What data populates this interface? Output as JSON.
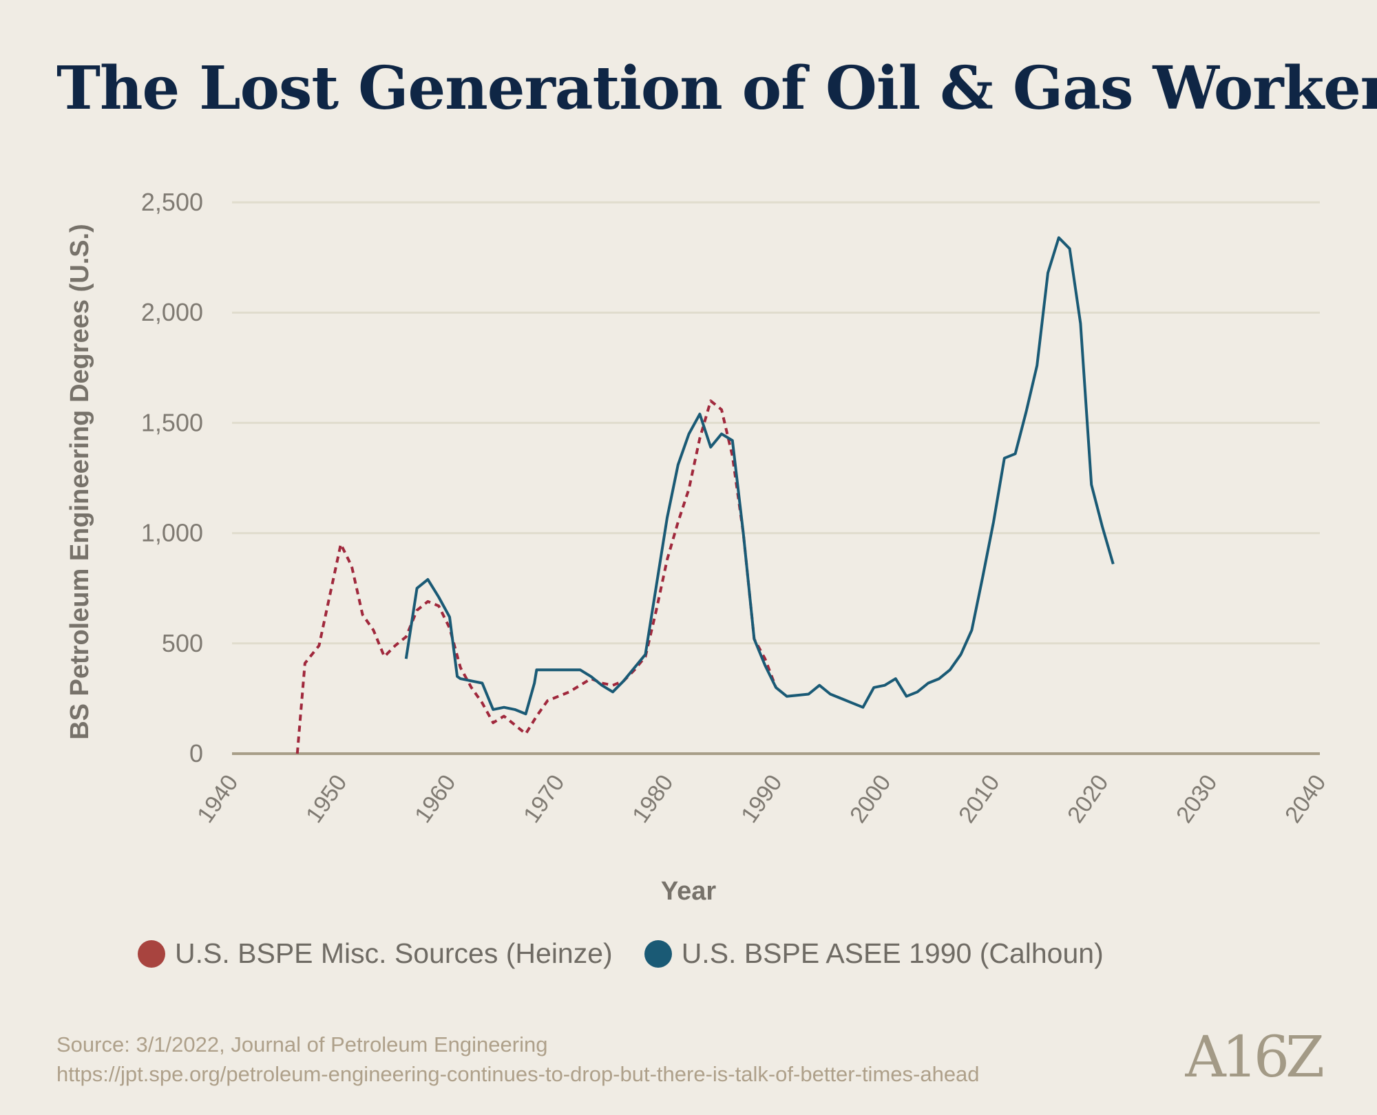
{
  "title": "The Lost Generation of Oil & Gas Workers",
  "chart_data": {
    "type": "line",
    "xlabel": "Year",
    "ylabel": "BS Petroleum Engineering Degrees (U.S.)",
    "xlim": [
      1940,
      2040
    ],
    "ylim": [
      0,
      2500
    ],
    "xticks": [
      1940,
      1950,
      1960,
      1970,
      1980,
      1990,
      2000,
      2010,
      2020,
      2030,
      2040
    ],
    "yticks": [
      0,
      500,
      1000,
      1500,
      2000,
      2500
    ],
    "ytick_labels": [
      "0",
      "500",
      "1,000",
      "1,500",
      "2,000",
      "2,500"
    ],
    "grid": true,
    "legend_position": "bottom",
    "series": [
      {
        "name": "U.S. BSPE Misc. Sources (Heinze)",
        "color": "#a0283c",
        "style": "dotted",
        "x": [
          1946,
          1946.7,
          1948,
          1950,
          1951,
          1952,
          1953,
          1954,
          1955,
          1956,
          1957,
          1958,
          1959,
          1960,
          1961,
          1962,
          1963,
          1964,
          1965,
          1966,
          1967,
          1968,
          1969,
          1970,
          1971,
          1972,
          1973,
          1974,
          1975,
          1976,
          1977,
          1978,
          1979,
          1980,
          1981,
          1982,
          1983,
          1984,
          1985,
          1986,
          1987,
          1988,
          1989,
          1990
        ],
        "y": [
          0,
          410,
          490,
          950,
          850,
          630,
          560,
          440,
          490,
          530,
          650,
          690,
          670,
          570,
          390,
          300,
          230,
          140,
          170,
          130,
          90,
          170,
          240,
          260,
          280,
          310,
          340,
          320,
          310,
          330,
          380,
          440,
          650,
          880,
          1050,
          1200,
          1430,
          1600,
          1560,
          1350,
          1000,
          520,
          430,
          300
        ],
        "legend_color": "#a8443f"
      },
      {
        "name": "U.S. BSPE ASEE 1990 (Calhoun)",
        "color": "#1a5a75",
        "style": "solid",
        "x": [
          1956,
          1957,
          1958,
          1959,
          1960,
          1960.7,
          1961,
          1962,
          1963,
          1964,
          1965,
          1966,
          1967,
          1967.8,
          1968,
          1969,
          1970,
          1971,
          1972,
          1973,
          1974,
          1975,
          1976,
          1977,
          1978,
          1979,
          1980,
          1981,
          1982,
          1983,
          1984,
          1985,
          1986,
          1987,
          1988,
          1989,
          1990,
          1991,
          1992,
          1993,
          1994,
          1995,
          1996,
          1997,
          1998,
          1999,
          2000,
          2001,
          2002,
          2003,
          2004,
          2005,
          2006,
          2007,
          2008,
          2009,
          2010,
          2011,
          2012,
          2013,
          2014,
          2015,
          2016,
          2017,
          2018,
          2019,
          2020,
          2021
        ],
        "y": [
          430,
          750,
          790,
          710,
          620,
          350,
          340,
          330,
          320,
          200,
          210,
          200,
          180,
          320,
          380,
          380,
          380,
          380,
          380,
          350,
          310,
          280,
          330,
          390,
          450,
          760,
          1070,
          1310,
          1450,
          1540,
          1390,
          1450,
          1420,
          1000,
          520,
          400,
          300,
          260,
          265,
          270,
          310,
          270,
          250,
          230,
          210,
          300,
          310,
          340,
          260,
          280,
          320,
          340,
          380,
          450,
          560,
          800,
          1050,
          1340,
          1360,
          1550,
          1760,
          2180,
          2340,
          2290,
          1950,
          1220,
          1030,
          860
        ],
        "legend_color": "#1a5a75"
      }
    ]
  },
  "source": {
    "line1": "Source: 3/1/2022, Journal of Petroleum Engineering",
    "line2": "https://jpt.spe.org/petroleum-engineering-continues-to-drop-but-there-is-talk-of-better-times-ahead"
  },
  "brand": "A16Z"
}
